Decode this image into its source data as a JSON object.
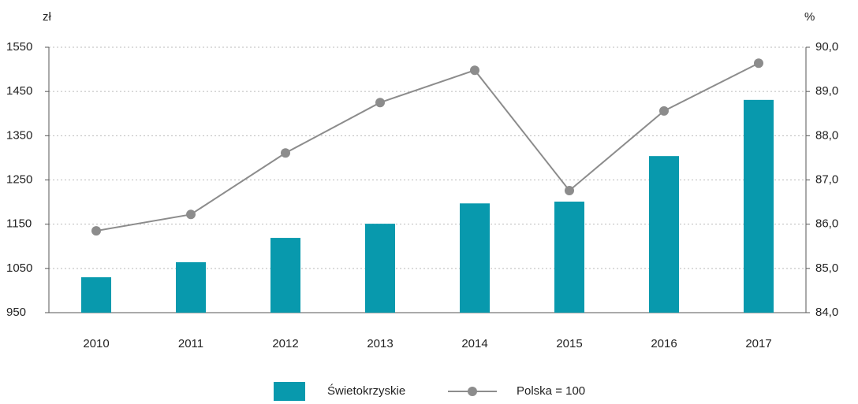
{
  "chart_data": {
    "type": "bar-line",
    "y_unit": "zł",
    "y2_unit": "%",
    "categories": [
      "2010",
      "2011",
      "2012",
      "2013",
      "2014",
      "2015",
      "2016",
      "2017"
    ],
    "series": [
      {
        "name": "Świetokrzyskie",
        "type": "bar",
        "color": "#0899ad",
        "values": [
          1030,
          1064,
          1119,
          1151,
          1197,
          1201,
          1304,
          1431
        ]
      },
      {
        "name": "Polska = 100",
        "type": "line",
        "axis": "y2",
        "color": "#8c8c8c",
        "values": [
          85.85,
          86.22,
          87.61,
          88.75,
          89.48,
          86.76,
          88.56,
          89.64
        ]
      }
    ],
    "ylim": [
      950,
      1550
    ],
    "yticks": [
      950,
      1050,
      1150,
      1250,
      1350,
      1450,
      1550
    ],
    "y2lim": [
      84,
      90
    ],
    "y2ticks": [
      {
        "value": 84,
        "label": "84,0"
      },
      {
        "value": 85,
        "label": "85,0"
      },
      {
        "value": 86,
        "label": "86,0"
      },
      {
        "value": 87,
        "label": "87,0"
      },
      {
        "value": 88,
        "label": "88,0"
      },
      {
        "value": 89,
        "label": "89,0"
      },
      {
        "value": 90,
        "label": "90,0"
      }
    ],
    "grid": true,
    "legend": "bottom"
  }
}
